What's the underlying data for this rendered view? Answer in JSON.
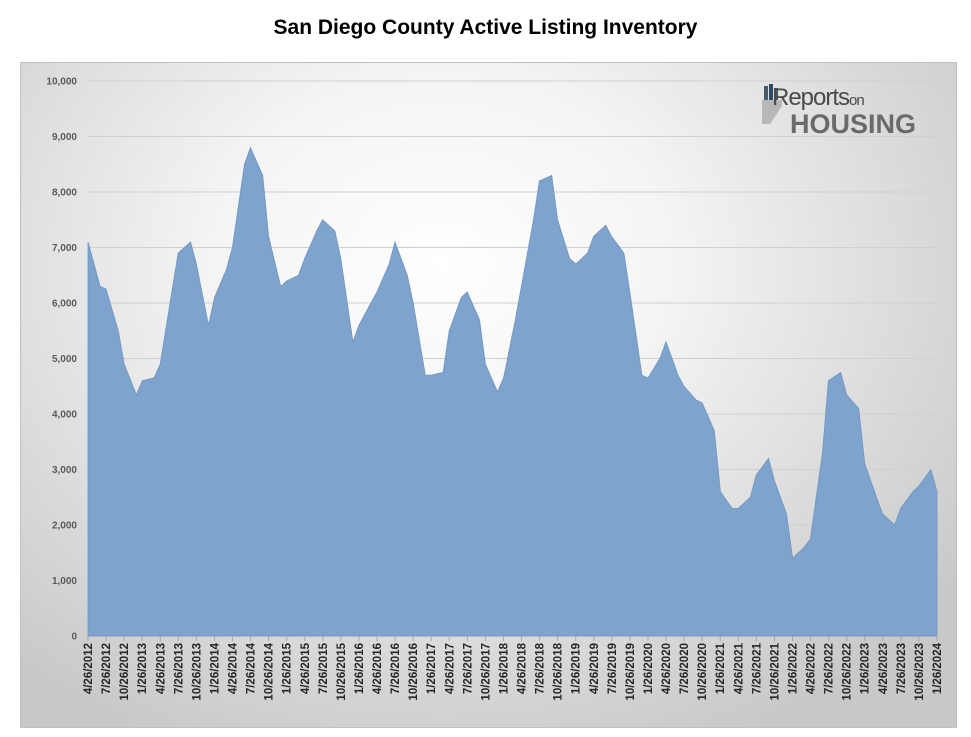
{
  "chart_data": {
    "type": "area",
    "title": "San Diego County Active Listing Inventory",
    "xlabel": "",
    "ylabel": "",
    "ylim": [
      0,
      10000
    ],
    "yticks": [
      "0",
      "1,000",
      "2,000",
      "3,000",
      "4,000",
      "5,000",
      "6,000",
      "7,000",
      "8,000",
      "9,000",
      "10,000"
    ],
    "xticks": [
      "4/26/2012",
      "7/26/2012",
      "10/26/2012",
      "1/26/2013",
      "4/26/2013",
      "7/26/2013",
      "10/26/2013",
      "1/26/2014",
      "4/26/2014",
      "7/26/2014",
      "10/26/2014",
      "1/26/2015",
      "4/26/2015",
      "7/26/2015",
      "10/26/2015",
      "1/26/2016",
      "4/26/2016",
      "7/26/2016",
      "10/26/2016",
      "1/26/2017",
      "4/26/2017",
      "7/26/2017",
      "10/26/2017",
      "1/26/2018",
      "4/26/2018",
      "7/26/2018",
      "10/26/2018",
      "1/26/2019",
      "4/26/2019",
      "7/26/2019",
      "10/26/2019",
      "1/26/2020",
      "4/26/2020",
      "7/26/2020",
      "10/26/2020",
      "1/26/2021",
      "4/26/2021",
      "7/26/2021",
      "10/26/2021",
      "1/26/2022",
      "4/26/2022",
      "7/26/2022",
      "10/26/2022",
      "1/26/2023",
      "4/26/2023",
      "7/26/2023",
      "10/26/2023",
      "1/26/2024"
    ],
    "x": [
      "4/26/2012",
      "6/26/2012",
      "7/26/2012",
      "9/26/2012",
      "10/26/2012",
      "12/26/2012",
      "1/26/2013",
      "3/26/2013",
      "4/26/2013",
      "6/26/2013",
      "7/26/2013",
      "9/26/2013",
      "10/26/2013",
      "12/26/2013",
      "1/26/2014",
      "3/26/2014",
      "4/26/2014",
      "6/26/2014",
      "7/26/2014",
      "9/26/2014",
      "10/26/2014",
      "12/26/2014",
      "1/26/2015",
      "3/26/2015",
      "4/26/2015",
      "6/26/2015",
      "7/26/2015",
      "9/26/2015",
      "10/26/2015",
      "12/26/2015",
      "1/26/2016",
      "3/26/2016",
      "4/26/2016",
      "6/26/2016",
      "7/26/2016",
      "9/26/2016",
      "10/26/2016",
      "12/26/2016",
      "1/26/2017",
      "3/26/2017",
      "4/26/2017",
      "6/26/2017",
      "7/26/2017",
      "9/26/2017",
      "10/26/2017",
      "12/26/2017",
      "1/26/2018",
      "3/26/2018",
      "4/26/2018",
      "6/26/2018",
      "7/26/2018",
      "9/26/2018",
      "10/26/2018",
      "12/26/2018",
      "1/26/2019",
      "3/26/2019",
      "4/26/2019",
      "6/26/2019",
      "7/26/2019",
      "9/26/2019",
      "10/26/2019",
      "12/26/2019",
      "1/26/2020",
      "3/26/2020",
      "4/26/2020",
      "6/26/2020",
      "7/26/2020",
      "9/26/2020",
      "10/26/2020",
      "12/26/2020",
      "1/26/2021",
      "3/26/2021",
      "4/26/2021",
      "6/26/2021",
      "7/26/2021",
      "9/26/2021",
      "10/26/2021",
      "12/26/2021",
      "1/26/2022",
      "3/26/2022",
      "4/26/2022",
      "6/26/2022",
      "7/26/2022",
      "9/26/2022",
      "10/26/2022",
      "12/26/2022",
      "1/26/2023",
      "3/26/2023",
      "4/26/2023",
      "6/26/2023",
      "7/26/2023",
      "9/26/2023",
      "10/26/2023",
      "12/26/2023",
      "1/26/2024",
      "2/26/2024"
    ],
    "series": [
      {
        "values": [
          7100,
          6300,
          6250,
          5500,
          4900,
          4350,
          4600,
          4650,
          4900,
          6250,
          6900,
          7100,
          6700,
          5600,
          6100,
          6600,
          7000,
          8500,
          8800,
          8300,
          7200,
          6300,
          6400,
          6500,
          6800,
          7300,
          7500,
          7300,
          6800,
          5300,
          5600,
          6000,
          6200,
          6700,
          7100,
          6500,
          6000,
          4700,
          4700,
          4750,
          5500,
          6100,
          6200,
          5700,
          4900,
          4400,
          4650,
          5700,
          6300,
          7500,
          8200,
          8300,
          7500,
          6800,
          6700,
          6900,
          7200,
          7400,
          7200,
          6900,
          6200,
          4700,
          4650,
          5000,
          5300,
          4700,
          4500,
          4250,
          4200,
          3700,
          2600,
          2300,
          2300,
          2500,
          2900,
          3200,
          2800,
          2200,
          1400,
          1600,
          1750,
          3300,
          4600,
          4750,
          4350,
          4100,
          3100,
          2500,
          2200,
          2000,
          2300,
          2600,
          2700,
          3000,
          2600,
          2500
        ]
      }
    ],
    "fill_color": "#7ea3cc",
    "grid": true,
    "legend": "none"
  },
  "logo": {
    "line1": "Reports",
    "line1_small": "on",
    "line2": "HOUSING"
  }
}
